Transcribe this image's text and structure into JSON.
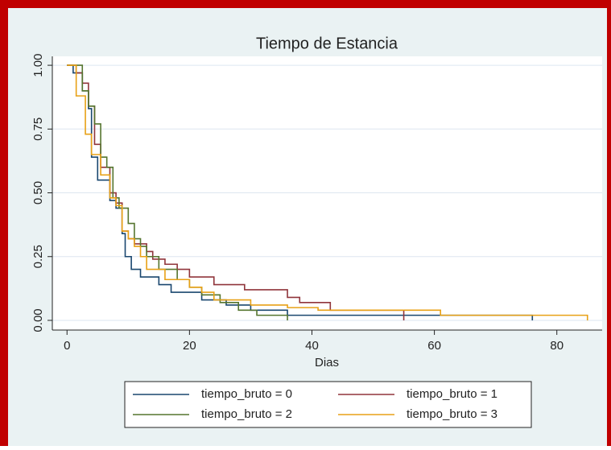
{
  "chart_data": {
    "type": "step",
    "title": "Tiempo de Estancia",
    "x_label": "Dias",
    "xlim": [
      -2.4,
      87.4
    ],
    "ylim": [
      -0.038,
      1.035
    ],
    "xticks": [
      0,
      20,
      40,
      60,
      80
    ],
    "yticks": [
      {
        "value": 0,
        "label": "0.00"
      },
      0.25,
      {
        "value": 0.5,
        "label": "0.50"
      },
      0.75,
      {
        "value": 1,
        "label": "1.00"
      }
    ],
    "grid": true,
    "series": [
      {
        "name": "tiempo_bruto = 0",
        "color": "#1a476f",
        "x": [
          0,
          1,
          2.5,
          3.5,
          4,
          5,
          7,
          8,
          9,
          9.5,
          10.5,
          12,
          15,
          17,
          22,
          26,
          30,
          36,
          76
        ],
        "values": [
          1,
          0.97,
          0.9,
          0.83,
          0.64,
          0.55,
          0.47,
          0.44,
          0.34,
          0.25,
          0.2,
          0.17,
          0.14,
          0.11,
          0.08,
          0.06,
          0.04,
          0.02,
          0
        ]
      },
      {
        "name": "tiempo_bruto = 1",
        "color": "#90353b",
        "x": [
          0,
          1.5,
          2.5,
          3.5,
          4.5,
          5.5,
          7,
          8,
          9,
          10,
          11,
          13,
          14,
          16,
          18,
          20,
          24,
          29,
          36,
          38,
          43,
          55
        ],
        "values": [
          1,
          0.97,
          0.93,
          0.84,
          0.69,
          0.6,
          0.5,
          0.46,
          0.35,
          0.32,
          0.3,
          0.27,
          0.24,
          0.22,
          0.2,
          0.17,
          0.14,
          0.12,
          0.09,
          0.07,
          0.04,
          0
        ]
      },
      {
        "name": "tiempo_bruto = 2",
        "color": "#55752f",
        "x": [
          0,
          2.5,
          3.5,
          4.5,
          5.5,
          6.5,
          7.5,
          8.5,
          10,
          11,
          12,
          13,
          15,
          18,
          20,
          22,
          25,
          28,
          31,
          36
        ],
        "values": [
          1,
          0.9,
          0.84,
          0.77,
          0.64,
          0.6,
          0.48,
          0.44,
          0.38,
          0.32,
          0.29,
          0.25,
          0.2,
          0.16,
          0.13,
          0.1,
          0.07,
          0.04,
          0.02,
          0
        ]
      },
      {
        "name": "tiempo_bruto = 3",
        "color": "#e8a116",
        "x": [
          0,
          1.5,
          3,
          4,
          5.5,
          7,
          8,
          9,
          10,
          11,
          12,
          13,
          16,
          20,
          22,
          24,
          30,
          36,
          41,
          61,
          85
        ],
        "values": [
          1,
          0.88,
          0.73,
          0.65,
          0.57,
          0.48,
          0.45,
          0.35,
          0.32,
          0.29,
          0.25,
          0.2,
          0.16,
          0.13,
          0.11,
          0.08,
          0.06,
          0.05,
          0.04,
          0.02,
          0
        ]
      }
    ]
  }
}
